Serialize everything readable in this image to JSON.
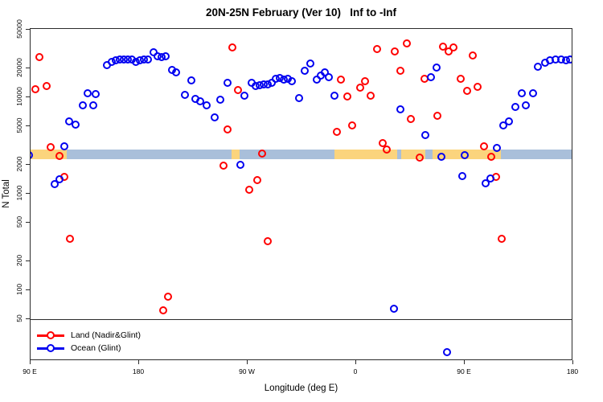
{
  "title": "20N-25N February (Ver 10)   Inf to -Inf",
  "x_axis": {
    "label": "Longitude (deg E)",
    "ticks": [
      {
        "lon": 90,
        "label": "90 E"
      },
      {
        "lon": 180,
        "label": "180"
      },
      {
        "lon": 270,
        "label": "90 W"
      },
      {
        "lon": 360,
        "label": "0"
      },
      {
        "lon": 450,
        "label": "90 E"
      },
      {
        "lon": 540,
        "label": "180"
      }
    ]
  },
  "y_axis": {
    "label": "N Total",
    "ticks": [
      50,
      100,
      200,
      500,
      1000,
      2000,
      5000,
      10000,
      20000,
      50000
    ]
  },
  "legend": {
    "items": [
      {
        "label": "Land (Nadir&Glint)",
        "color": "#ff0000"
      },
      {
        "label": "Ocean (Glint)",
        "color": "#0000f0"
      }
    ]
  },
  "chart_data": {
    "type": "scatter",
    "title": "20N-25N February (Ver 10)   Inf to -Inf",
    "xlabel": "Longitude (deg E)",
    "ylabel": "N Total",
    "x_range": [
      90,
      540
    ],
    "y_log_range": [
      18.5,
      51000
    ],
    "grid": false,
    "threshold_line_y": 50,
    "surface_band": {
      "center_value": 2550,
      "land_color": "#fbd47d",
      "ocean_color": "#a9bfda",
      "segments": [
        {
          "from": 90,
          "to": 120,
          "surface": "land"
        },
        {
          "from": 120,
          "to": 256.7,
          "surface": "ocean"
        },
        {
          "from": 256.7,
          "to": 263.3,
          "surface": "land"
        },
        {
          "from": 263.3,
          "to": 342,
          "surface": "ocean"
        },
        {
          "from": 342,
          "to": 394,
          "surface": "land"
        },
        {
          "from": 394,
          "to": 397,
          "surface": "ocean"
        },
        {
          "from": 397,
          "to": 417,
          "surface": "land"
        },
        {
          "from": 417,
          "to": 423,
          "surface": "ocean"
        },
        {
          "from": 423,
          "to": 480,
          "surface": "land"
        },
        {
          "from": 480,
          "to": 540,
          "surface": "ocean"
        }
      ]
    },
    "series": [
      {
        "name": "Land (Nadir&Glint)",
        "color": "#ff0000",
        "points": [
          [
            97.3,
            26000
          ],
          [
            94,
            12100
          ],
          [
            103.3,
            13100
          ],
          [
            106.7,
            3040
          ],
          [
            114,
            2470
          ],
          [
            118,
            1500
          ],
          [
            122.7,
            341
          ],
          [
            200,
            62
          ],
          [
            204,
            86
          ],
          [
            250,
            1960
          ],
          [
            257.3,
            32900
          ],
          [
            262,
            11900
          ],
          [
            253.3,
            4650
          ],
          [
            278,
            1390
          ],
          [
            271.3,
            1100
          ],
          [
            282,
            2610
          ],
          [
            286.7,
            322
          ],
          [
            347.3,
            15300
          ],
          [
            352.7,
            10100
          ],
          [
            363.3,
            12600
          ],
          [
            367.3,
            14700
          ],
          [
            372,
            10400
          ],
          [
            344,
            4390
          ],
          [
            356.7,
            5100
          ],
          [
            377.3,
            31600
          ],
          [
            392,
            29900
          ],
          [
            402,
            36100
          ],
          [
            396.7,
            18800
          ],
          [
            382,
            3350
          ],
          [
            385.3,
            2870
          ],
          [
            405.3,
            5960
          ],
          [
            427.3,
            6430
          ],
          [
            416.7,
            15600
          ],
          [
            412.7,
            2370
          ],
          [
            432,
            33500
          ],
          [
            436.7,
            29900
          ],
          [
            440.7,
            32900
          ],
          [
            456.7,
            27100
          ],
          [
            446.7,
            15600
          ],
          [
            452,
            11700
          ],
          [
            460.7,
            12800
          ],
          [
            466,
            3090
          ],
          [
            472,
            2420
          ],
          [
            476,
            1500
          ],
          [
            480.7,
            341
          ]
        ]
      },
      {
        "name": "Ocean (Glint)",
        "color": "#0000f0",
        "points": [
          [
            88.7,
            2510
          ],
          [
            118,
            3090
          ],
          [
            114,
            1410
          ],
          [
            110,
            1260
          ],
          [
            122,
            5620
          ],
          [
            127.3,
            5210
          ],
          [
            133.3,
            8260
          ],
          [
            137.3,
            11000
          ],
          [
            142,
            8260
          ],
          [
            144,
            10800
          ],
          [
            153.3,
            21500
          ],
          [
            157.3,
            23300
          ],
          [
            160.7,
            24200
          ],
          [
            164,
            24400
          ],
          [
            167.3,
            24700
          ],
          [
            170.7,
            24700
          ],
          [
            174,
            24400
          ],
          [
            177.3,
            23300
          ],
          [
            180.7,
            24200
          ],
          [
            184,
            24400
          ],
          [
            187.3,
            24700
          ],
          [
            192,
            29300
          ],
          [
            195.3,
            26600
          ],
          [
            198.7,
            26300
          ],
          [
            202,
            26600
          ],
          [
            207.3,
            19200
          ],
          [
            210.7,
            18100
          ],
          [
            223.3,
            15000
          ],
          [
            218,
            10600
          ],
          [
            226.7,
            9620
          ],
          [
            230.7,
            9080
          ],
          [
            236,
            8260
          ],
          [
            242.7,
            6190
          ],
          [
            247.3,
            9440
          ],
          [
            253.3,
            14100
          ],
          [
            264,
            2000
          ],
          [
            267.3,
            10400
          ],
          [
            273.3,
            14100
          ],
          [
            276.7,
            13100
          ],
          [
            280,
            13400
          ],
          [
            283.3,
            13700
          ],
          [
            286.7,
            13700
          ],
          [
            290,
            14100
          ],
          [
            293.3,
            15600
          ],
          [
            296.7,
            15900
          ],
          [
            300,
            15300
          ],
          [
            303.3,
            15600
          ],
          [
            306.7,
            14700
          ],
          [
            312.7,
            9800
          ],
          [
            317.3,
            18800
          ],
          [
            322,
            22400
          ],
          [
            327.3,
            15300
          ],
          [
            330.7,
            16800
          ],
          [
            334,
            18100
          ],
          [
            337.3,
            16100
          ],
          [
            342,
            10400
          ],
          [
            391.3,
            64
          ],
          [
            396.7,
            7500
          ],
          [
            417.3,
            4060
          ],
          [
            422,
            16100
          ],
          [
            426.7,
            20300
          ],
          [
            430.7,
            2420
          ],
          [
            435.3,
            23
          ],
          [
            448,
            1520
          ],
          [
            450,
            2510
          ],
          [
            467.3,
            1280
          ],
          [
            471.3,
            1440
          ],
          [
            476.7,
            2990
          ],
          [
            482,
            5100
          ],
          [
            486.7,
            5620
          ],
          [
            492,
            7940
          ],
          [
            500.7,
            8260
          ],
          [
            497.3,
            11000
          ],
          [
            506.7,
            11000
          ],
          [
            510.7,
            20800
          ],
          [
            516.7,
            22800
          ],
          [
            520.7,
            24200
          ],
          [
            525.3,
            24400
          ],
          [
            530,
            24700
          ],
          [
            534,
            24200
          ],
          [
            537.3,
            24400
          ]
        ]
      }
    ]
  }
}
